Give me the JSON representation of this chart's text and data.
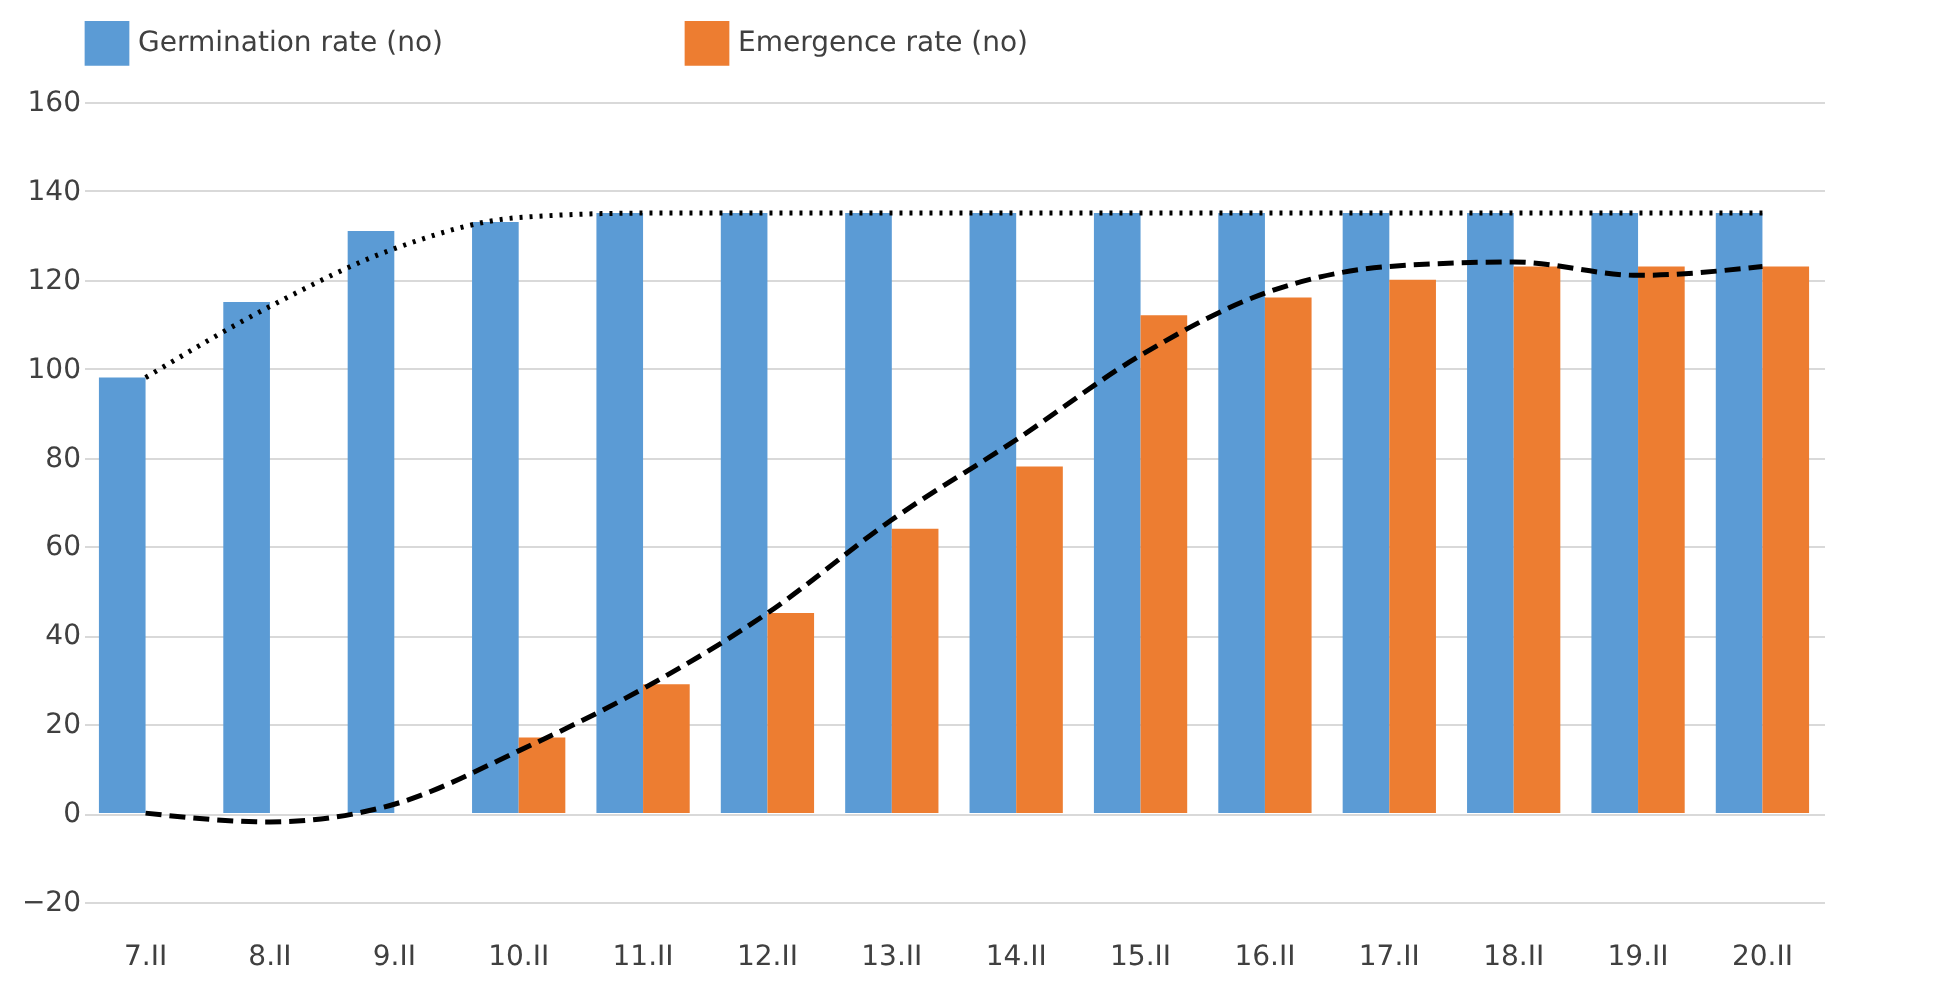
{
  "chart_data": {
    "type": "bar",
    "categories": [
      "7.II",
      "8.II",
      "9.II",
      "10.II",
      "11.II",
      "12.II",
      "13.II",
      "14.II",
      "15.II",
      "16.II",
      "17.II",
      "18.II",
      "19.II",
      "20.II"
    ],
    "series": [
      {
        "name": "Germination rate (no)",
        "color": "#5b9bd5",
        "values": [
          98,
          115,
          131,
          133,
          135,
          135,
          135,
          135,
          135,
          135,
          135,
          135,
          135,
          135
        ]
      },
      {
        "name": "Emergence rate (no)",
        "color": "#ed7d31",
        "values": [
          0,
          0,
          0,
          17,
          29,
          45,
          64,
          78,
          112,
          116,
          120,
          123,
          123,
          123
        ]
      },
      {
        "type": "line",
        "color": "#000000",
        "line_style": "dotted",
        "x": [
          "7.II",
          "8.II",
          "9.II",
          "10.II",
          "11.II",
          "12.II",
          "13.II",
          "14.II",
          "15.II",
          "16.II",
          "17.II",
          "18.II",
          "19.II",
          "20.II"
        ],
        "values": [
          98,
          114,
          127,
          134,
          135,
          135,
          135,
          135,
          135,
          135,
          135,
          135,
          135,
          135
        ]
      },
      {
        "type": "line",
        "color": "#000000",
        "line_style": "dashed",
        "x": [
          "7.II",
          "8.II",
          "9.II",
          "10.II",
          "11.II",
          "12.II",
          "13.II",
          "14.II",
          "15.II",
          "16.II",
          "17.II",
          "18.II",
          "19.II",
          "20.II"
        ],
        "values": [
          0,
          -2,
          2,
          14,
          28,
          45,
          66,
          84,
          103,
          117,
          123,
          124,
          121,
          123
        ]
      }
    ],
    "ylim": [
      -20,
      160
    ],
    "yticks": [
      -20,
      0,
      20,
      40,
      60,
      80,
      100,
      120,
      140,
      160
    ],
    "grid": "y",
    "legend": "top"
  }
}
